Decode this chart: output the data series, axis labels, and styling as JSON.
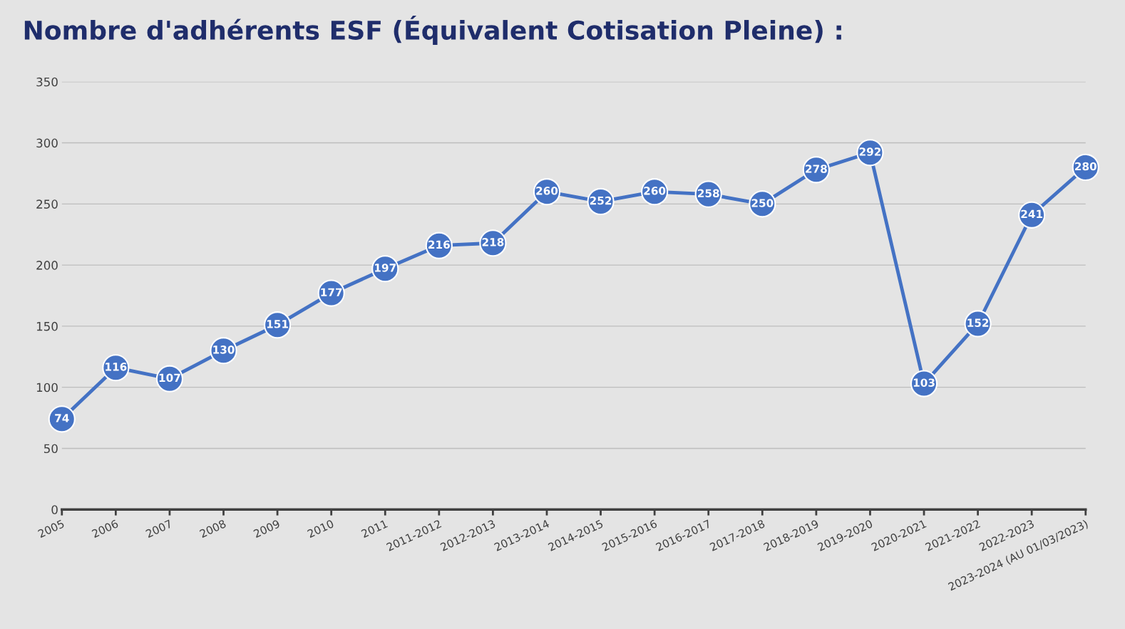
{
  "chart_data": {
    "type": "line",
    "title": "Nombre d'adhérents ESF (Équivalent Cotisation Pleine) :",
    "categories": [
      "2005",
      "2006",
      "2007",
      "2008",
      "2009",
      "2010",
      "2011",
      "2011-2012",
      "2012-2013",
      "2013-2014",
      "2014-2015",
      "2015-2016",
      "2016-2017",
      "2017-2018",
      "2018-2019",
      "2019-2020",
      "2020-2021",
      "2021-2022",
      "2022-2023",
      "2023-2024 (AU 01/03/2023)"
    ],
    "series": [
      {
        "color": "#4472c4",
        "values": [
          74,
          116,
          107,
          130,
          151,
          177,
          197,
          216,
          218,
          260,
          252,
          260,
          258,
          250,
          278,
          292,
          103,
          152,
          241,
          280
        ]
      }
    ],
    "ylim": [
      0,
      350
    ],
    "yticks": [
      0,
      50,
      100,
      150,
      200,
      250,
      300,
      350
    ],
    "grid": "y",
    "marker": "circle",
    "line_style": "solid",
    "data_labels": true
  }
}
